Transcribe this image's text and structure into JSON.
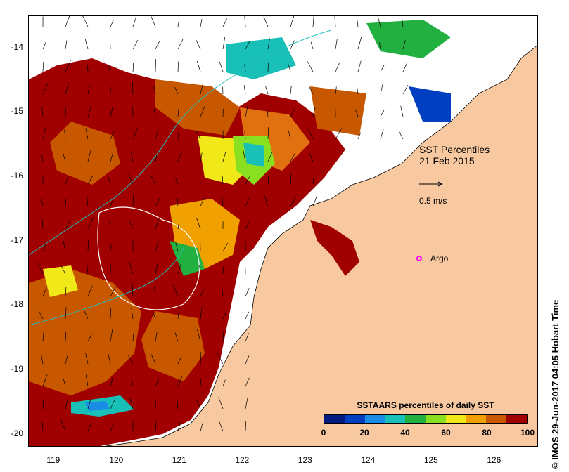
{
  "map": {
    "title_line1": "SST Percentiles",
    "title_line2": "21 Feb 2015",
    "scale_label": "0.5 m/s",
    "argo_label": "Argo",
    "lon_range": [
      118.6,
      126.7
    ],
    "lat_range": [
      -20.2,
      -13.5
    ],
    "lon_ticks": [
      "119",
      "120",
      "121",
      "122",
      "123",
      "124",
      "125",
      "126"
    ],
    "lat_ticks": [
      "-14",
      "-15",
      "-16",
      "-17",
      "-18",
      "-19",
      "-20"
    ],
    "argo_float": {
      "lon": 124.8,
      "lat": -17.27
    },
    "credit": "© IMOS 29-Jun-2017 04:05 Hobart Time"
  },
  "colorbar": {
    "title": "SSTAARS percentiles of daily SST",
    "tick_labels": [
      "0",
      "20",
      "40",
      "60",
      "80",
      "100"
    ],
    "colors": [
      "#001a80",
      "#0040c0",
      "#1a8ce6",
      "#18c0b8",
      "#22b040",
      "#88e020",
      "#f0e818",
      "#f0a000",
      "#c85800",
      "#a00000"
    ]
  },
  "colors": {
    "land": "#f8c8a0",
    "high_percentile": "#a00000",
    "mid_percentile": "#c85800",
    "no_data": "#ffffff",
    "argo_marker": "#ff00ff"
  }
}
